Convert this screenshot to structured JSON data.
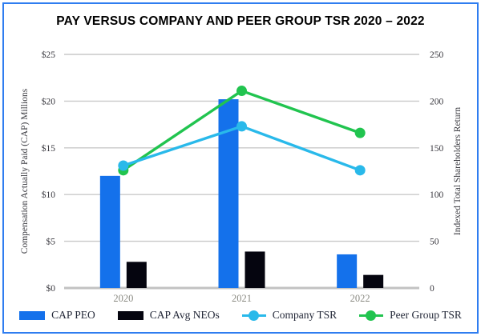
{
  "title": "PAY VERSUS COMPANY AND PEER GROUP TSR 2020 – 2022",
  "frame": {
    "border_color": "#2f7df0"
  },
  "chart_data": {
    "type": "bar",
    "subtype": "combo-bar-line-dual-axis",
    "categories": [
      "2020",
      "2021",
      "2022"
    ],
    "bar_series": [
      {
        "name": "CAP PEO",
        "color": "#1471eb",
        "axis": "left",
        "values": [
          12.0,
          20.2,
          3.6
        ]
      },
      {
        "name": "CAP Avg NEOs",
        "color": "#05050f",
        "axis": "left",
        "values": [
          2.8,
          3.9,
          1.4
        ]
      }
    ],
    "line_series": [
      {
        "name": "Company TSR",
        "color": "#29b9ea",
        "axis": "right",
        "values": [
          131,
          173,
          126
        ]
      },
      {
        "name": "Peer Group TSR",
        "color": "#21c44f",
        "axis": "right",
        "values": [
          126,
          211,
          166
        ]
      }
    ],
    "left_axis": {
      "label": "Compensation Actually Paid (CAP) Millions",
      "min": 0,
      "max": 25,
      "tick_values": [
        0,
        5,
        10,
        15,
        20,
        25
      ],
      "tick_labels": [
        "$0",
        "$5",
        "$10",
        "$15",
        "$20",
        "$25"
      ]
    },
    "right_axis": {
      "label": "Indexed Total Shareholders Return",
      "min": 0,
      "max": 250,
      "tick_values": [
        0,
        50,
        100,
        150,
        200,
        250
      ],
      "tick_labels": [
        "0",
        "50",
        "100",
        "150",
        "200",
        "250"
      ]
    },
    "grid": true,
    "gridline_color": "#c9c9c9",
    "baseline_color": "#c2c2c2",
    "legend_position": "bottom"
  }
}
